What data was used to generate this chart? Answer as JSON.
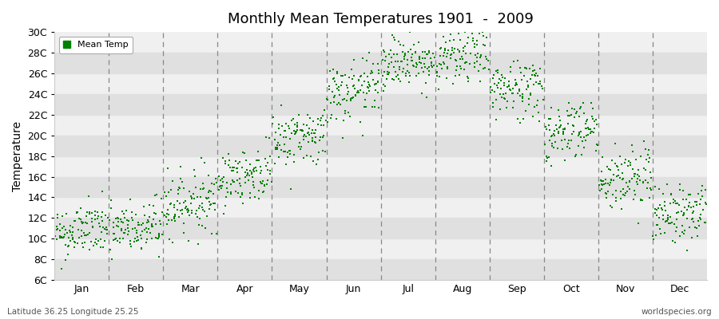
{
  "title": "Monthly Mean Temperatures 1901  -  2009",
  "ylabel": "Temperature",
  "subtitle_left": "Latitude 36.25 Longitude 25.25",
  "subtitle_right": "worldspecies.org",
  "legend_label": "Mean Temp",
  "dot_color": "#008000",
  "dot_size": 3,
  "background_color": "#ffffff",
  "plot_bg_light": "#f0f0f0",
  "plot_bg_dark": "#e0e0e0",
  "ylim": [
    6,
    30
  ],
  "yticks": [
    6,
    8,
    10,
    12,
    14,
    16,
    18,
    20,
    22,
    24,
    26,
    28,
    30
  ],
  "ytick_labels": [
    "6C",
    "8C",
    "10C",
    "12C",
    "14C",
    "16C",
    "18C",
    "20C",
    "22C",
    "24C",
    "26C",
    "28C",
    "30C"
  ],
  "months": [
    "Jan",
    "Feb",
    "Mar",
    "Apr",
    "May",
    "Jun",
    "Jul",
    "Aug",
    "Sep",
    "Oct",
    "Nov",
    "Dec"
  ],
  "mean_temps": [
    10.5,
    10.7,
    13.2,
    15.8,
    19.5,
    23.8,
    26.8,
    27.2,
    24.2,
    20.2,
    15.5,
    12.2
  ],
  "std_devs": [
    1.3,
    1.4,
    1.5,
    1.3,
    1.4,
    1.5,
    1.3,
    1.4,
    1.5,
    1.5,
    1.6,
    1.4
  ],
  "trend_per_month": [
    0.005,
    0.005,
    0.006,
    0.006,
    0.006,
    0.007,
    0.007,
    0.007,
    0.006,
    0.006,
    0.006,
    0.005
  ],
  "n_years": 109,
  "seed": 42
}
